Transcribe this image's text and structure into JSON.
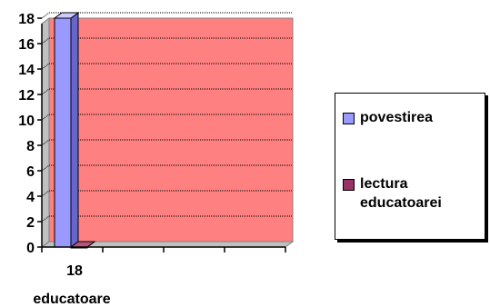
{
  "chart_data": {
    "type": "bar",
    "categories": [
      "18"
    ],
    "category_axis_label": "educatoare",
    "series": [
      {
        "name": "povestirea",
        "values": [
          18
        ],
        "color": "#9999ff"
      },
      {
        "name": "lectura educatoarei",
        "values": [
          0
        ],
        "color": "#993366"
      }
    ],
    "ylim": [
      0,
      18
    ],
    "yticks": [
      0,
      2,
      4,
      6,
      8,
      10,
      12,
      14,
      16,
      18
    ],
    "grid": true,
    "plot_background": "#ff8080",
    "legend_position": "right",
    "style": "3d"
  }
}
